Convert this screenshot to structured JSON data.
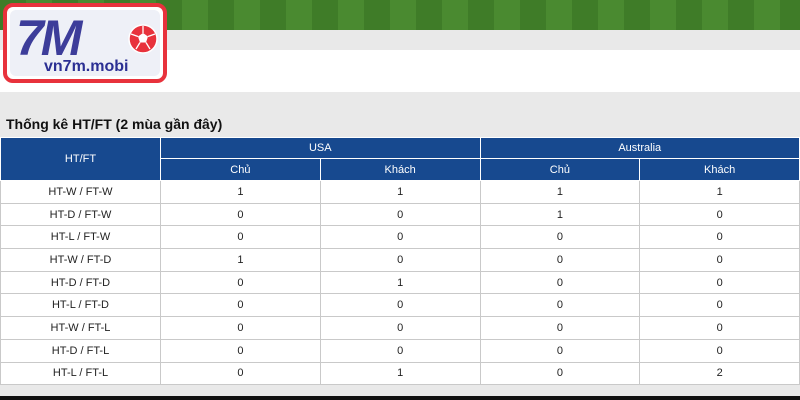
{
  "logo": {
    "mark": "7M",
    "site": "vn7m.mobi"
  },
  "section": {
    "title": "Thống kê HT/FT (2 mùa gần đây)"
  },
  "table": {
    "label_header": "HT/FT",
    "teams": [
      "USA",
      "Australia"
    ],
    "sub_headers": [
      "Chủ",
      "Khách",
      "Chủ",
      "Khách"
    ],
    "rows": [
      {
        "label": "HT-W / FT-W",
        "values": [
          "1",
          "1",
          "1",
          "1"
        ]
      },
      {
        "label": "HT-D / FT-W",
        "values": [
          "0",
          "0",
          "1",
          "0"
        ]
      },
      {
        "label": "HT-L / FT-W",
        "values": [
          "0",
          "0",
          "0",
          "0"
        ]
      },
      {
        "label": "HT-W / FT-D",
        "values": [
          "1",
          "0",
          "0",
          "0"
        ]
      },
      {
        "label": "HT-D / FT-D",
        "values": [
          "0",
          "1",
          "0",
          "0"
        ]
      },
      {
        "label": "HT-L / FT-D",
        "values": [
          "0",
          "0",
          "0",
          "0"
        ]
      },
      {
        "label": "HT-W / FT-L",
        "values": [
          "0",
          "0",
          "0",
          "0"
        ]
      },
      {
        "label": "HT-D / FT-L",
        "values": [
          "0",
          "0",
          "0",
          "0"
        ]
      },
      {
        "label": "HT-L / FT-L",
        "values": [
          "0",
          "1",
          "0",
          "2"
        ]
      }
    ]
  },
  "colors": {
    "header_bg": "#17498f",
    "logo_border": "#e8323c",
    "logo_text": "#3d3d9a"
  },
  "icons": {
    "ball": "soccer-ball-icon"
  }
}
